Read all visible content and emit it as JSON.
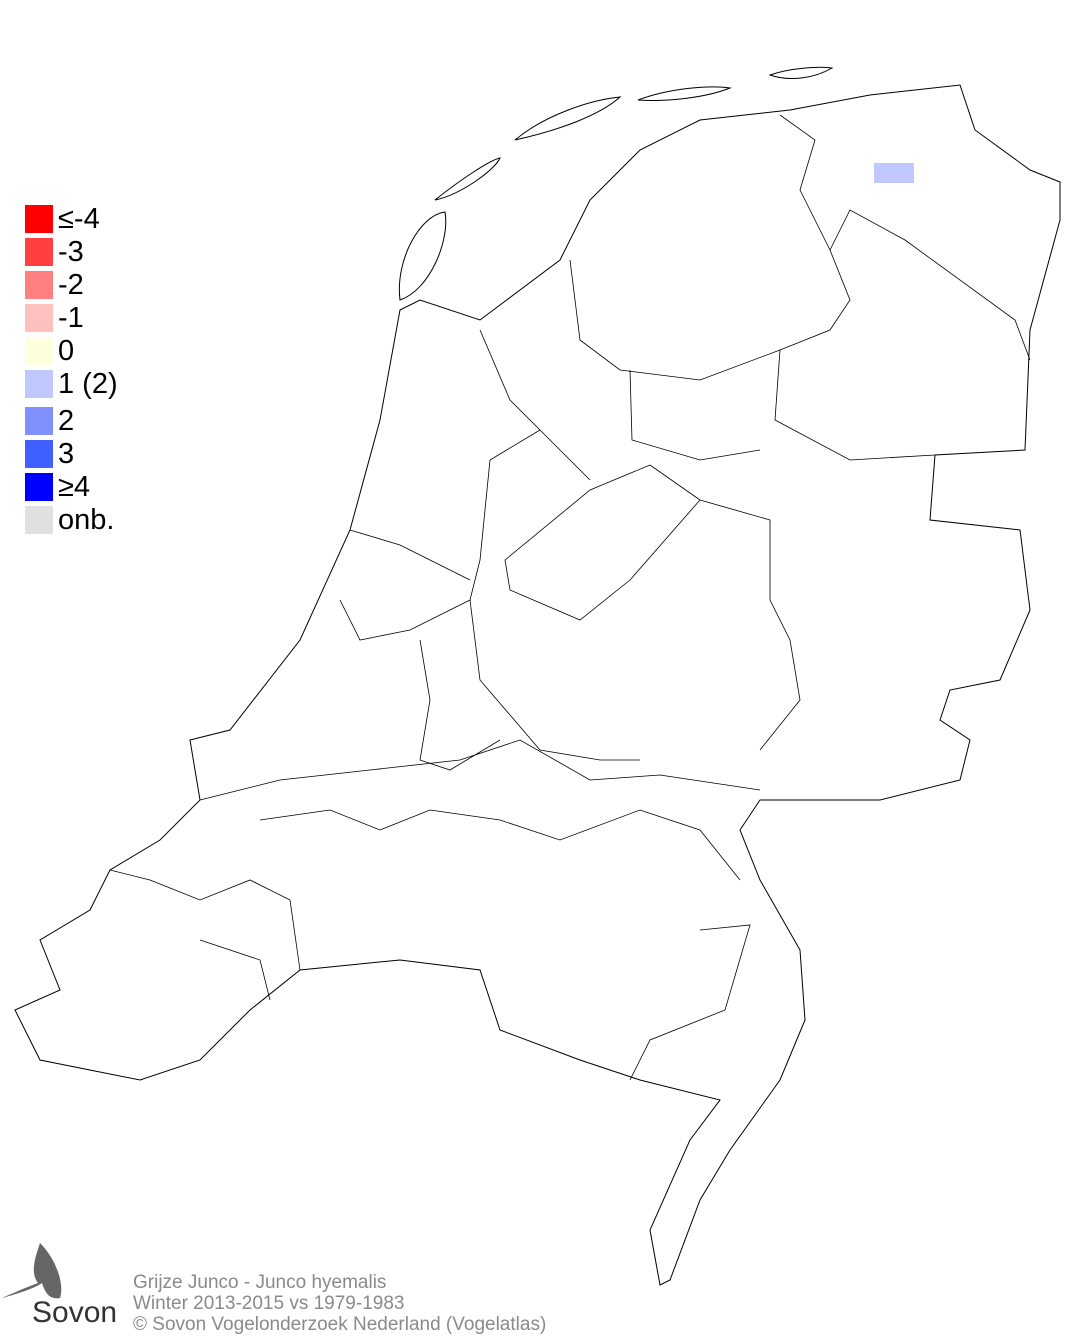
{
  "legend": {
    "items": [
      {
        "label": "≤-4",
        "color": "#ff0000"
      },
      {
        "label": "-3",
        "color": "#ff4040"
      },
      {
        "label": "-2",
        "color": "#ff8080"
      },
      {
        "label": "-1",
        "color": "#ffc0c0"
      },
      {
        "label": " 0",
        "color": "#ffffe0"
      },
      {
        "label": " 1 (2)",
        "color": "#c0c8ff"
      },
      {
        "label": " 2",
        "color": "#8090ff"
      },
      {
        "label": " 3",
        "color": "#4060ff"
      },
      {
        "label": "≥4",
        "color": "#0000ff"
      },
      {
        "label": "onb.",
        "color": "#e0e0e0"
      }
    ]
  },
  "map": {
    "cells": [
      {
        "category": "1 (2)",
        "color": "#c0c8ff"
      }
    ]
  },
  "footer": {
    "species": "Grijze Junco - Junco hyemalis",
    "period": "Winter 2013-2015 vs 1979-1983",
    "copyright": "© Sovon Vogelonderzoek Nederland (Vogelatlas)"
  },
  "logo": {
    "text": "Sovon"
  }
}
